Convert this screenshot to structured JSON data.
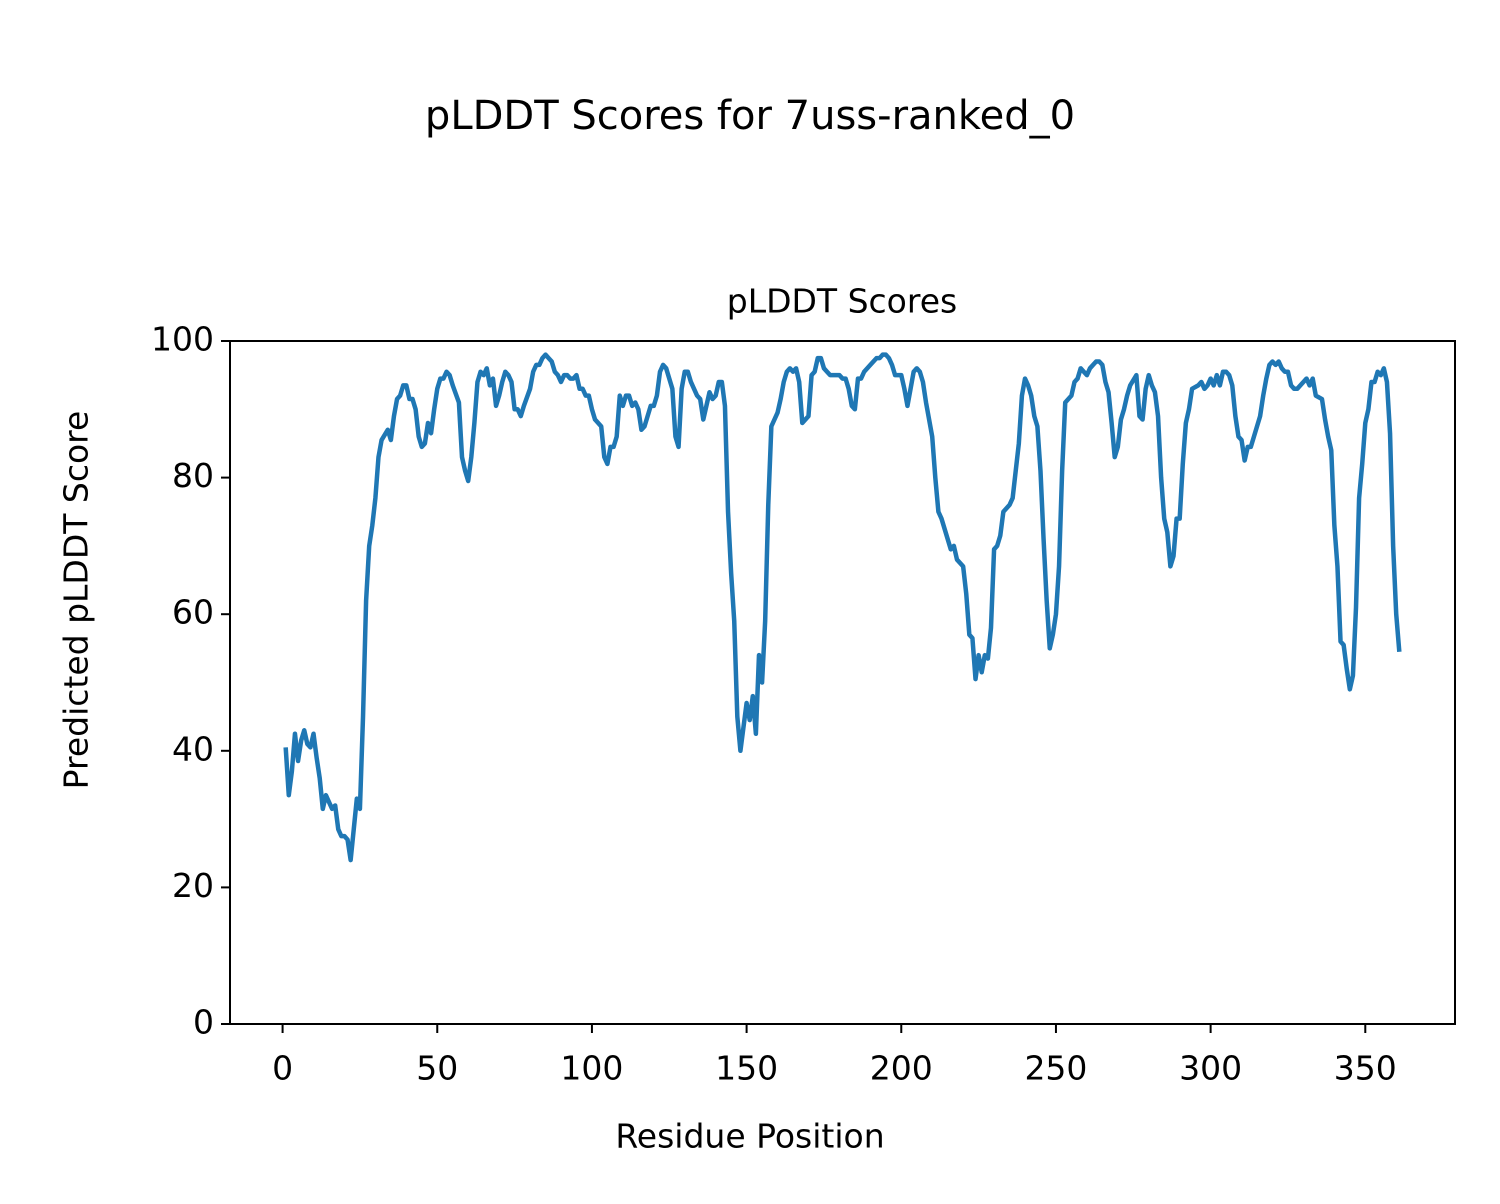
{
  "chart_data": {
    "type": "line",
    "title": "pLDDT Scores for 7uss-ranked_0",
    "subtitle": "pLDDT Scores",
    "x_label": "Residue Position",
    "y_label": "Predicted pLDDT Score",
    "xlim": [
      -17,
      379
    ],
    "ylim": [
      0,
      100
    ],
    "xticks": [
      0,
      50,
      100,
      150,
      200,
      250,
      300,
      350
    ],
    "yticks": [
      0,
      20,
      40,
      60,
      80,
      100
    ],
    "grid": false,
    "x": [
      1,
      2,
      3,
      4,
      5,
      6,
      7,
      8,
      9,
      10,
      11,
      12,
      13,
      14,
      15,
      16,
      17,
      18,
      19,
      20,
      21,
      22,
      23,
      24,
      25,
      26,
      27,
      28,
      29,
      30,
      31,
      32,
      34,
      35,
      36,
      37,
      38,
      39,
      40,
      41,
      42,
      43,
      44,
      45,
      46,
      47,
      48,
      49,
      50,
      51,
      52,
      53,
      54,
      55,
      57,
      58,
      59,
      60,
      61,
      62,
      63,
      64,
      65,
      66,
      67,
      68,
      69,
      70,
      71,
      72,
      73,
      74,
      75,
      76,
      77,
      78,
      80,
      81,
      82,
      83,
      84,
      85,
      86,
      87,
      88,
      89,
      90,
      91,
      92,
      93,
      94,
      95,
      96,
      97,
      98,
      99,
      100,
      101,
      103,
      104,
      105,
      106,
      107,
      108,
      109,
      110,
      111,
      112,
      113,
      114,
      115,
      116,
      117,
      118,
      119,
      120,
      121,
      122,
      123,
      124,
      126,
      127,
      128,
      129,
      130,
      131,
      132,
      133,
      134,
      135,
      136,
      137,
      138,
      139,
      140,
      141,
      142,
      143,
      144,
      145,
      146,
      147,
      148,
      150,
      151,
      152,
      153,
      154,
      155,
      156,
      157,
      158,
      160,
      161,
      162,
      163,
      164,
      165,
      166,
      167,
      168,
      170,
      171,
      172,
      173,
      174,
      175,
      176,
      177,
      178,
      180,
      181,
      182,
      183,
      184,
      185,
      186,
      187,
      188,
      190,
      191,
      192,
      193,
      194,
      195,
      196,
      197,
      198,
      200,
      201,
      202,
      203,
      204,
      205,
      206,
      207,
      208,
      210,
      211,
      212,
      213,
      214,
      215,
      216,
      217,
      218,
      220,
      221,
      222,
      223,
      224,
      225,
      226,
      227,
      228,
      229,
      230,
      231,
      232,
      233,
      235,
      236,
      237,
      238,
      239,
      240,
      241,
      242,
      243,
      244,
      245,
      246,
      247,
      248,
      249,
      250,
      251,
      252,
      253,
      255,
      256,
      257,
      258,
      259,
      260,
      261,
      262,
      263,
      264,
      265,
      266,
      267,
      268,
      269,
      270,
      271,
      272,
      273,
      274,
      276,
      277,
      278,
      279,
      280,
      281,
      282,
      283,
      284,
      285,
      286,
      287,
      288,
      289,
      290,
      291,
      292,
      293,
      294,
      296,
      297,
      298,
      299,
      300,
      301,
      302,
      303,
      304,
      305,
      306,
      307,
      308,
      309,
      310,
      311,
      312,
      313,
      314,
      316,
      317,
      318,
      319,
      320,
      321,
      322,
      323,
      324,
      325,
      326,
      327,
      328,
      329,
      330,
      331,
      332,
      333,
      334,
      336,
      337,
      338,
      339,
      340,
      341,
      342,
      343,
      344,
      345,
      346,
      347,
      348,
      349,
      350,
      351,
      352,
      353,
      354,
      355,
      356,
      357,
      358,
      359,
      360,
      361
    ],
    "series": [
      {
        "name": "pLDDT",
        "color": "#1f77b4",
        "values": [
          40.5,
          33.5,
          37,
          42.5,
          38.5,
          41.5,
          43,
          41,
          40.5,
          42.5,
          39,
          36,
          31.5,
          33.5,
          32.5,
          31.5,
          32,
          28.5,
          27.5,
          27.5,
          27,
          24,
          28.5,
          33,
          31.5,
          45,
          62,
          70,
          73,
          77,
          83,
          85.5,
          87,
          85.5,
          89,
          91.5,
          92,
          93.5,
          93.5,
          91.5,
          91.5,
          90,
          86,
          84.5,
          85,
          88,
          86.5,
          90,
          93,
          94.5,
          94.5,
          95.5,
          95,
          93.5,
          91,
          83,
          81,
          79.5,
          83,
          88,
          94,
          95.5,
          95,
          96,
          93.5,
          94.5,
          90.5,
          92,
          94,
          95.5,
          95,
          94,
          90,
          90,
          89,
          90.5,
          93,
          95.5,
          96.5,
          96.5,
          97.5,
          98,
          97.5,
          97,
          95.5,
          95,
          94,
          95,
          95,
          94.5,
          94.5,
          95,
          93,
          93,
          92,
          92,
          90,
          88.5,
          87.5,
          83,
          82,
          84.5,
          84.5,
          86,
          92,
          90.5,
          92,
          92,
          90.5,
          91,
          90,
          87,
          87.5,
          89,
          90.5,
          90.5,
          92,
          95.5,
          96.5,
          96,
          93,
          86,
          84.5,
          93,
          95.5,
          95.5,
          94,
          93,
          92,
          91.5,
          88.5,
          90.5,
          92.5,
          91.5,
          92,
          94,
          94,
          90.5,
          75,
          66,
          59,
          45,
          40,
          47,
          44.5,
          48,
          42.5,
          54,
          50,
          59,
          76,
          87.5,
          89.5,
          91.5,
          94,
          95.5,
          96,
          95.5,
          96,
          94,
          88,
          89,
          95,
          95.5,
          97.5,
          97.5,
          96,
          95.5,
          95,
          95,
          95,
          94.5,
          94.5,
          93,
          90.5,
          90,
          94.5,
          94.5,
          95.5,
          96.5,
          97,
          97.5,
          97.5,
          98,
          98,
          97.5,
          96.5,
          95,
          95,
          93,
          90.5,
          93,
          95.5,
          96,
          95.5,
          94,
          91,
          86,
          80,
          75,
          74,
          72.5,
          71,
          69.5,
          70,
          68,
          67,
          63,
          57,
          56.5,
          50.5,
          54,
          51.5,
          54,
          53.5,
          58,
          69.5,
          70,
          71.5,
          75,
          76,
          77,
          81,
          85,
          92,
          94.5,
          93.5,
          92,
          89,
          87.5,
          81,
          71,
          62,
          55,
          57,
          60,
          67,
          81,
          91,
          92,
          94,
          94.5,
          96,
          95.5,
          95,
          96,
          96.5,
          97,
          97,
          96.5,
          94,
          92.5,
          88,
          83,
          84.5,
          88.5,
          90,
          92,
          93.5,
          95,
          89,
          88.5,
          93,
          95,
          93.5,
          92.5,
          89,
          80,
          74,
          72,
          67,
          68.5,
          74,
          74,
          82,
          88,
          90,
          93,
          93.5,
          94,
          93,
          93.5,
          94.5,
          93.5,
          95,
          93.5,
          95.5,
          95.5,
          95,
          93.5,
          89,
          86,
          85.5,
          82.5,
          84.5,
          84.5,
          86,
          89,
          92,
          94.5,
          96.5,
          97,
          96.5,
          97,
          96,
          95.5,
          95.5,
          93.5,
          93,
          93,
          93.5,
          94,
          94.5,
          93.5,
          94.5,
          92,
          91.5,
          88.5,
          86,
          84,
          73,
          67,
          56,
          55.5,
          52,
          49,
          51,
          61,
          77,
          82,
          88,
          90,
          94,
          94,
          95.5,
          95,
          96,
          94,
          86.5,
          70,
          60,
          54.5
        ]
      }
    ]
  }
}
